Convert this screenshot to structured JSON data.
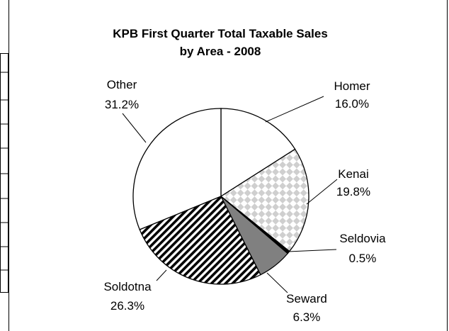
{
  "chart_data": {
    "type": "pie",
    "title": [
      "KPB First Quarter Total Taxable Sales",
      "by Area - 2008"
    ],
    "slices": [
      {
        "name": "Homer",
        "value": 16.0,
        "label": "16.0%",
        "fill": "none"
      },
      {
        "name": "Kenai",
        "value": 19.8,
        "label": "19.8%",
        "fill": "checker"
      },
      {
        "name": "Seldovia",
        "value": 0.5,
        "label": "0.5%",
        "fill": "black"
      },
      {
        "name": "Seward",
        "value": 6.3,
        "label": "6.3%",
        "fill": "gray"
      },
      {
        "name": "Soldotna",
        "value": 26.3,
        "label": "26.3%",
        "fill": "diagonal"
      },
      {
        "name": "Other",
        "value": 31.2,
        "label": "31.2%",
        "fill": "none"
      }
    ],
    "colors": {
      "gray": "#808080",
      "checker": "#d4d4d4",
      "line": "#000000",
      "background": "#ffffff"
    },
    "legend": "none",
    "label_placement": "outside with leader lines"
  }
}
